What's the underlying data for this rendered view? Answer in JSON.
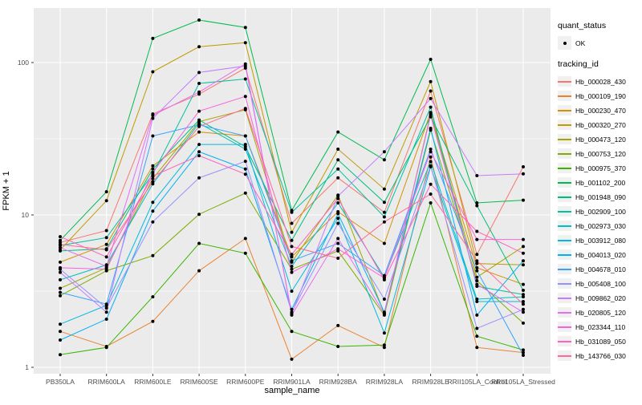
{
  "chart_data": {
    "type": "line",
    "title": "",
    "xlabel": "sample_name",
    "ylabel": "FPKM + 1",
    "y_scale": "log10",
    "y_ticks": [
      1,
      10,
      100
    ],
    "y_minor_ticks": [
      3.162,
      31.62
    ],
    "ylim": [
      0.91,
      230
    ],
    "grid": true,
    "panel_bg": "#EBEBEB",
    "grid_color": "#FFFFFF",
    "tick_label_color": "#4D4D4D",
    "point_color": "#000000",
    "categories": [
      "PB350LA",
      "RRIM600LA",
      "RRIM600LE",
      "RRIM600SE",
      "RRIM600PE",
      "RRIM901LA",
      "RRIM928BA",
      "RRIM928LA",
      "RRIM928LE",
      "RRII105LA_Control",
      "RRII105LA_Stressed"
    ],
    "legend": {
      "quant_title": "quant_status",
      "quant_items": [
        {
          "label": "OK",
          "marker": "black-point"
        }
      ],
      "tracking_title": "tracking_id"
    },
    "series": [
      {
        "name": "Hb_000028_430",
        "color": "#F8766D",
        "values": [
          6.6,
          7.9,
          46,
          62,
          92,
          8.8,
          17.5,
          10.4,
          65,
          5.5,
          20.7
        ]
      },
      {
        "name": "Hb_000109_190",
        "color": "#EA8331",
        "values": [
          1.72,
          1.37,
          2.0,
          4.3,
          7.0,
          1.13,
          1.88,
          1.35,
          24,
          1.35,
          1.25
        ]
      },
      {
        "name": "Hb_000230_470",
        "color": "#D89000",
        "values": [
          4.9,
          6.4,
          21,
          35,
          33,
          5.3,
          10.5,
          6.5,
          47,
          4.5,
          3.5
        ]
      },
      {
        "name": "Hb_000320_270",
        "color": "#C09B00",
        "values": [
          5.9,
          12.4,
          87,
          127,
          135,
          7.7,
          27,
          14.8,
          75,
          4.8,
          4.7
        ]
      },
      {
        "name": "Hb_000473_120",
        "color": "#A3A500",
        "values": [
          3.3,
          4.5,
          17.3,
          41,
          49,
          4.9,
          13.5,
          2.25,
          46,
          3.9,
          6.2
        ]
      },
      {
        "name": "Hb_000753_120",
        "color": "#7CAE00",
        "values": [
          2.95,
          4.3,
          5.4,
          10.1,
          13.9,
          4.4,
          5.8,
          2.2,
          36,
          3.7,
          1.95
        ]
      },
      {
        "name": "Hb_000975_370",
        "color": "#39B600",
        "values": [
          1.21,
          1.35,
          2.9,
          6.5,
          5.6,
          1.72,
          1.37,
          1.4,
          12.0,
          1.6,
          1.3
        ]
      },
      {
        "name": "Hb_001102_200",
        "color": "#00BB4E",
        "values": [
          6.8,
          14.2,
          144,
          190,
          170,
          10.7,
          35,
          23,
          105,
          12,
          12.5
        ]
      },
      {
        "name": "Hb_001948_090",
        "color": "#00BF7D",
        "values": [
          5.8,
          6.0,
          20,
          42,
          28,
          6.8,
          23,
          12.1,
          44,
          11.5,
          3.2
        ]
      },
      {
        "name": "Hb_002909_100",
        "color": "#00C1A3",
        "values": [
          6.3,
          7.1,
          18.5,
          73,
          78,
          10.4,
          20,
          9.7,
          51,
          3.4,
          3.0
        ]
      },
      {
        "name": "Hb_002973_030",
        "color": "#00BFC4",
        "values": [
          3.75,
          4.7,
          16,
          40,
          27,
          4.6,
          12,
          3.9,
          22.4,
          2.8,
          2.9
        ]
      },
      {
        "name": "Hb_003912_080",
        "color": "#00BAE0",
        "values": [
          1.92,
          2.55,
          12.1,
          29,
          29,
          3.16,
          9.5,
          1.68,
          20.7,
          2.7,
          2.7
        ]
      },
      {
        "name": "Hb_004013_020",
        "color": "#00B0F6",
        "values": [
          1.51,
          2.07,
          10.6,
          26,
          20,
          2.4,
          10.2,
          2.3,
          37,
          2.2,
          5.0
        ]
      },
      {
        "name": "Hb_004678_010",
        "color": "#35A2FF",
        "values": [
          3.1,
          2.6,
          33,
          39,
          33,
          5.0,
          6.5,
          4.0,
          27,
          4.3,
          1.2
        ]
      },
      {
        "name": "Hb_005408_100",
        "color": "#9590FF",
        "values": [
          4.4,
          2.45,
          9,
          17.5,
          22.5,
          2.3,
          8.8,
          2.8,
          21,
          1.8,
          2.4
        ]
      },
      {
        "name": "Hb_009862_020",
        "color": "#C77CFF",
        "values": [
          4.2,
          2.3,
          43,
          86,
          95,
          2.25,
          13.3,
          26,
          58,
          18.1,
          18.6
        ]
      },
      {
        "name": "Hb_020805_120",
        "color": "#E76BF3",
        "values": [
          6.1,
          4.6,
          45,
          64,
          98,
          2.2,
          7.0,
          2.25,
          45,
          3.5,
          2.3
        ]
      },
      {
        "name": "Hb_023344_110",
        "color": "#FA62DB",
        "values": [
          4.5,
          4.4,
          19,
          48,
          60,
          4.2,
          6.0,
          3.85,
          26,
          6.9,
          6.9
        ]
      },
      {
        "name": "Hb_031089_050",
        "color": "#FF62BC",
        "values": [
          7.2,
          5.3,
          18,
          24.5,
          18.5,
          5.5,
          12.8,
          3.75,
          15.9,
          7.8,
          5.6
        ]
      },
      {
        "name": "Hb_143766_030",
        "color": "#FF6A98",
        "values": [
          6.4,
          5.9,
          16.5,
          38,
          50,
          6.2,
          5.2,
          9.0,
          13.7,
          5.0,
          2.6
        ]
      }
    ]
  }
}
